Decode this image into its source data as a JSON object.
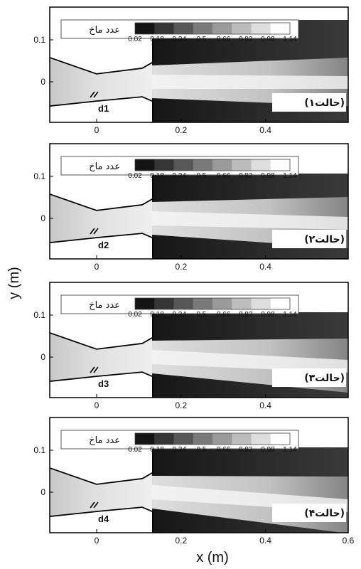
{
  "figure": {
    "x_axis_title": "x (m)",
    "y_axis_title": "y (m)",
    "x_ticks": [
      "0",
      "0.2",
      "0.4",
      "0.6"
    ],
    "y_ticks": [
      "0.1",
      "0"
    ],
    "legend_label": "عدد ماخ",
    "legend_ticks": [
      "0.02",
      "0.18",
      "0.34",
      "0.5",
      "0.66",
      "0.82",
      "0.98",
      "1.14"
    ],
    "legend_range": [
      0.02,
      1.14
    ],
    "panels": [
      {
        "case_label": "(حالت۱)",
        "d_label": "d1"
      },
      {
        "case_label": "(حالت۲)",
        "d_label": "d2"
      },
      {
        "case_label": "(حالت۳)",
        "d_label": "d3"
      },
      {
        "case_label": "(حالت۴)",
        "d_label": "d4"
      }
    ],
    "colors": {
      "background_field": "#1c1c1c",
      "jet_core": "#e8e8e8",
      "nozzle_wall": "#000000",
      "frame": "#000000"
    }
  }
}
